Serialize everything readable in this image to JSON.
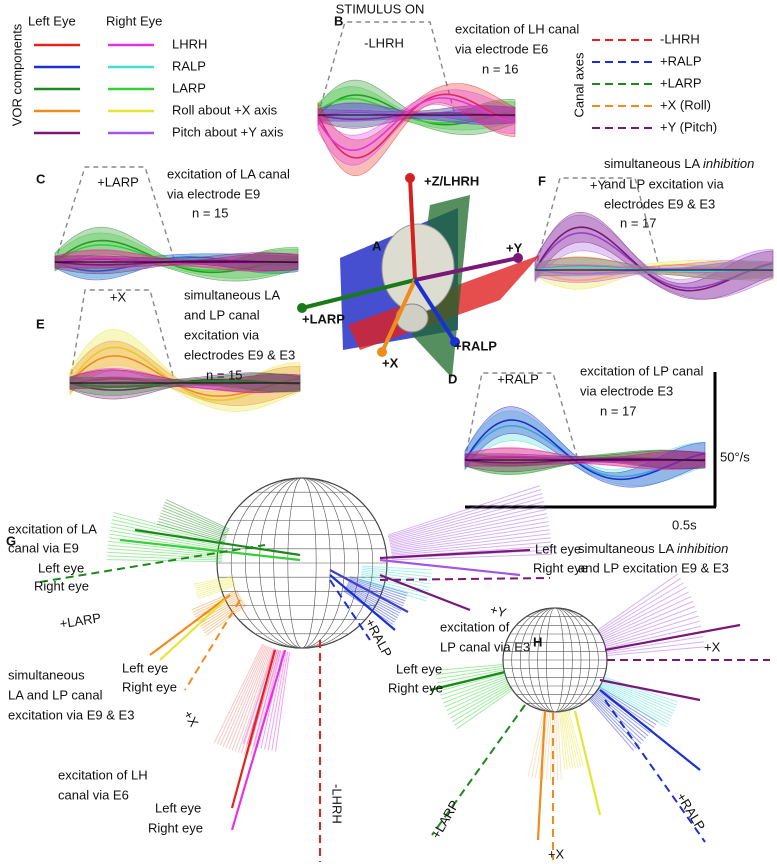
{
  "legend_vor": {
    "title": "VOR components",
    "left_header": "Left Eye",
    "right_header": "Right Eye",
    "rows": [
      "LHRH",
      "RALP",
      "LARP",
      "Roll about +X axis",
      "Pitch about +Y axis"
    ]
  },
  "legend_canal": {
    "title": "Canal axes",
    "rows": [
      "-LHRH",
      "+RALP",
      "+LARP",
      "+X (Roll)",
      "+Y (Pitch)"
    ]
  },
  "panel_b": {
    "stimulus": "STIMULUS ON",
    "letter": "B",
    "axis": "-LHRH",
    "lines": [
      "excitation of LH canal",
      "via electrode E6"
    ],
    "n": "n = 16"
  },
  "panel_c": {
    "letter": "C",
    "axis": "+LARP",
    "lines": [
      "excitation of LA canal",
      "via electrode E9"
    ],
    "n": "n = 15"
  },
  "panel_f": {
    "letter": "F",
    "axis": "+Y",
    "line1": [
      "simultaneous LA ",
      "inhibition"
    ],
    "lines": [
      "and LP excitation via",
      "electrodes E9 & E3"
    ],
    "n": "n = 17"
  },
  "panel_a": {
    "letter": "A",
    "axes": [
      "+Z/LHRH",
      "+Y",
      "+LARP",
      "+X",
      "+RALP"
    ]
  },
  "panel_e": {
    "letter": "E",
    "axis": "+X",
    "lines": [
      "simultaneous LA",
      "and LP canal",
      "excitation via",
      "electrodes E9 & E3"
    ],
    "n": "n = 15"
  },
  "panel_d": {
    "letter": "D",
    "axis": "+RALP",
    "lines": [
      "excitation of LP canal",
      "via electrode E3"
    ],
    "n": "n = 17",
    "scale_y": "50°/s",
    "scale_x": "0.5s"
  },
  "panel_g": {
    "letter": "G",
    "la": {
      "lines": [
        "excitation of LA",
        "canal via E9"
      ],
      "left": "Left eye",
      "right": "Right eye",
      "axis": "+LARP"
    },
    "lalp": {
      "lines": [
        "simultaneous",
        "LA and LP canal",
        "excitation via E9 & E3"
      ],
      "left": "Left eye",
      "right": "Right eye",
      "axis": "+X"
    },
    "lh": {
      "lines": [
        "excitation of LH",
        "canal via E6"
      ],
      "left": "Left eye",
      "right": "Right eye",
      "axis": "-LHRH"
    },
    "lp": {
      "lines": [
        "excitation of",
        "LP canal via E3"
      ],
      "left": "Left eye",
      "right": "Right eye",
      "axis": "+RALP"
    },
    "inh": {
      "left": "Left eye",
      "right": "Right eye",
      "line1": [
        "simultaneous LA ",
        "inhibition"
      ],
      "line2": "and LP excitation E9 & E3",
      "axis": "+Y"
    }
  },
  "panel_h": {
    "letter": "H",
    "axes": [
      "+X",
      "+LARP",
      "+X",
      "+RALP"
    ]
  }
}
